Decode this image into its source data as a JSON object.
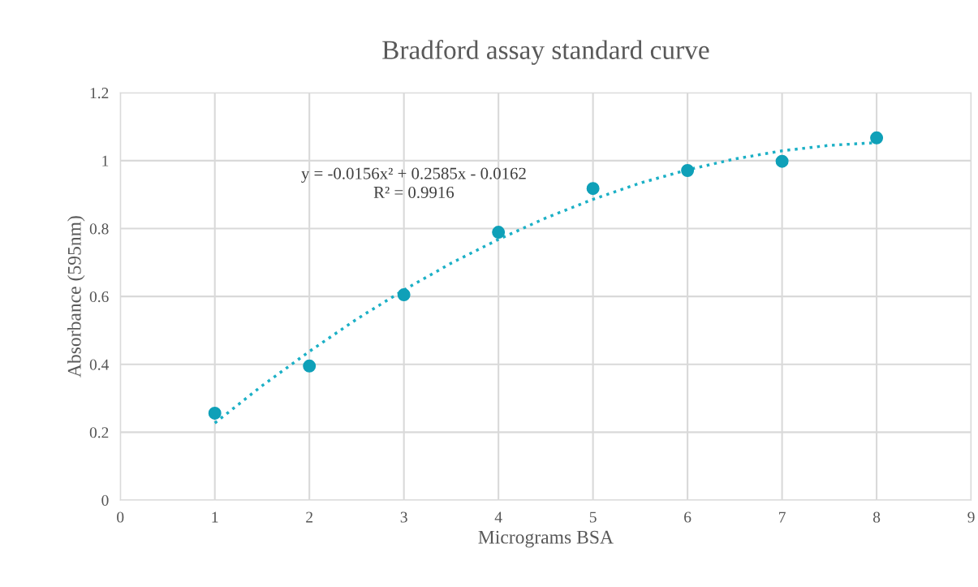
{
  "chart_data": {
    "type": "scatter",
    "title": "Bradford assay standard curve",
    "xlabel": "Micrograms BSA",
    "ylabel": "Absorbance (595nm)",
    "xlim": [
      0,
      9
    ],
    "xticks": [
      0,
      1,
      2,
      3,
      4,
      5,
      6,
      7,
      8,
      9
    ],
    "ylim": [
      0,
      1.2
    ],
    "yticks": [
      {
        "value": 0,
        "label": "0"
      },
      {
        "value": 0.2,
        "label": "0.2"
      },
      {
        "value": 0.4,
        "label": "0.4"
      },
      {
        "value": 0.6,
        "label": "0.6"
      },
      {
        "value": 0.8,
        "label": "0.8"
      },
      {
        "value": 1,
        "label": "1"
      },
      {
        "value": 1.2,
        "label": "1.2"
      }
    ],
    "grid": true,
    "marker": "circle",
    "series": [
      {
        "color": "#0fa0b8",
        "x": [
          1,
          2,
          3,
          4,
          5,
          6,
          7,
          8
        ],
        "values": [
          0.256,
          0.395,
          0.605,
          0.789,
          0.918,
          0.971,
          0.998,
          1.067
        ]
      },
      {
        "type": "line",
        "line_style": "dotted",
        "marker": "none",
        "color": "#1cb0c6",
        "x": [
          1,
          1.5,
          2,
          2.5,
          3,
          3.5,
          4,
          4.5,
          5,
          5.5,
          6,
          6.5,
          7,
          7.5,
          8
        ],
        "values": [
          0.227,
          0.337,
          0.438,
          0.533,
          0.619,
          0.698,
          0.768,
          0.831,
          0.886,
          0.934,
          0.973,
          1.005,
          1.029,
          1.045,
          1.053
        ]
      }
    ],
    "annotations": [
      "y = -0.0156x² + 0.2585x - 0.0162\nR² = 0.9916"
    ]
  }
}
